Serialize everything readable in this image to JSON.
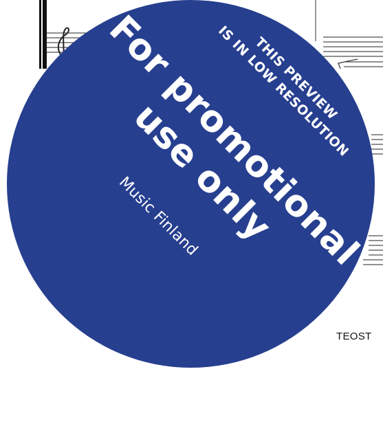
{
  "page": {
    "footer_code": "TEOST"
  },
  "stamp": {
    "preview_line_1": "THIS PREVIEW",
    "preview_line_2": "IS IN LOW RESOLUTION",
    "main_line_1": "For promotional",
    "main_line_2": "use only",
    "brand": "Music Finland",
    "disc_color": "#273f8f",
    "text_color": "#ffffff"
  }
}
